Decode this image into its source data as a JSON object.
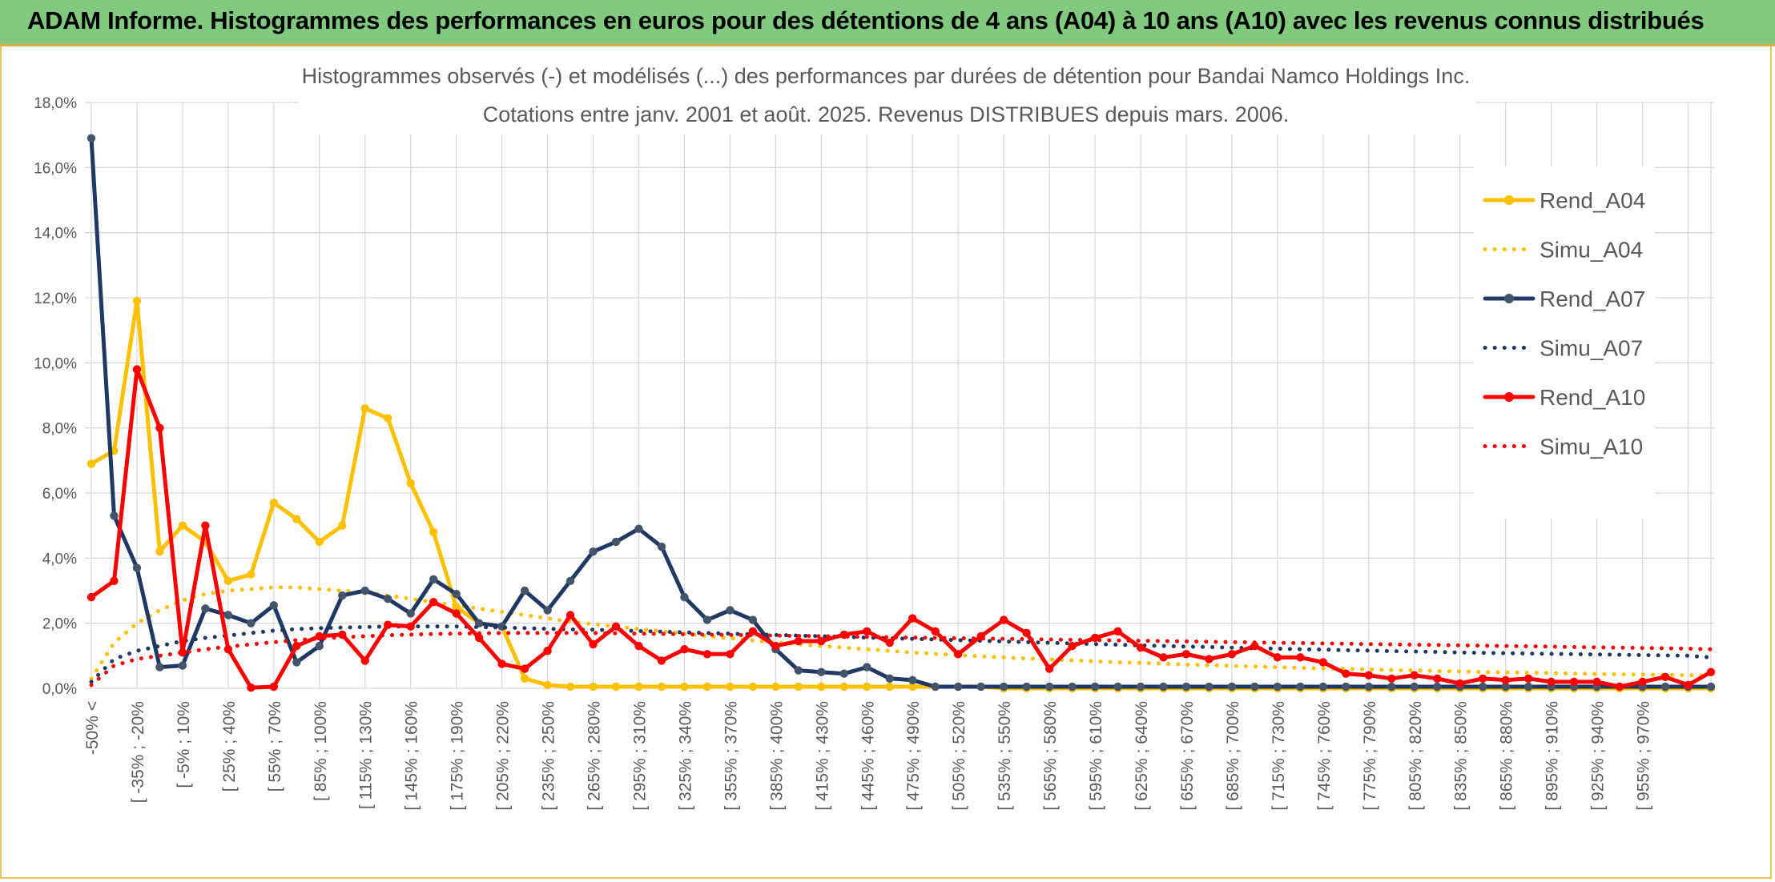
{
  "header": {
    "title": "ADAM Informe. Histogrammes des performances en euros pour des détentions de 4 ans (A04) à 10 ans (A10) avec les revenus connus distribués"
  },
  "chart_data": {
    "type": "line",
    "title": "Histogrammes observés (-) et modélisés (...) des performances par durées de détention pour Bandai Namco Holdings Inc.",
    "subtitle": "Cotations entre janv. 2001 et août. 2025. Revenus DISTRIBUES depuis mars. 2006.",
    "xlabel": "",
    "ylabel": "",
    "ylim": [
      0,
      18
    ],
    "y_unit": "%",
    "y_ticks": [
      "0,0%",
      "2,0%",
      "4,0%",
      "6,0%",
      "8,0%",
      "10,0%",
      "12,0%",
      "14,0%",
      "16,0%",
      "18,0%"
    ],
    "grid": true,
    "legend_position": "right",
    "num_points": 72,
    "x_tick_labels": [
      "-50% <",
      "[ -35% ; -20%",
      "[ -5% ; 10%",
      "[ 25% ; 40%",
      "[ 55% ; 70%",
      "[ 85% ; 100%",
      "[ 115% ; 130%",
      "[ 145% ; 160%",
      "[ 175% ; 190%",
      "[ 205% ; 220%",
      "[ 235% ; 250%",
      "[ 265% ; 280%",
      "[ 295% ; 310%",
      "[ 325% ; 340%",
      "[ 355% ; 370%",
      "[ 385% ; 400%",
      "[ 415% ; 430%",
      "[ 445% ; 460%",
      "[ 475% ; 490%",
      "[ 505% ; 520%",
      "[ 535% ; 550%",
      "[ 565% ; 580%",
      "[ 595% ; 610%",
      "[ 625% ; 640%",
      "[ 655% ; 670%",
      "[ 685% ; 700%",
      "[ 715% ; 730%",
      "[ 745% ; 760%",
      "[ 775% ; 790%",
      "[ 805% ; 820%",
      "[ 835% ; 850%",
      "[ 865% ; 880%",
      "[ 895% ; 910%",
      "[ 925% ; 940%",
      "[ 955% ; 970%"
    ],
    "x_tick_every": 2,
    "series": [
      {
        "name": "Rend_A04",
        "style": "solid",
        "color": "#ffc000",
        "markers": true,
        "values": [
          6.9,
          7.3,
          11.9,
          4.2,
          5.0,
          4.5,
          3.3,
          3.5,
          5.7,
          5.2,
          4.5,
          5.0,
          8.6,
          8.3,
          6.3,
          4.8,
          2.5,
          2.0,
          1.9,
          0.3,
          0.1,
          0.05,
          0.05,
          0.05,
          0.05,
          0.05,
          0.05,
          0.05,
          0.05,
          0.05,
          0.05,
          0.05,
          0.05,
          0.05,
          0.05,
          0.05,
          0.05,
          0.05,
          0.05,
          0.05,
          0.0,
          0.0,
          0.0,
          0.0,
          0.0,
          0.0,
          0.0,
          0.0,
          0.0,
          0.0,
          0.0,
          0.0,
          0.0,
          0.0,
          0.0,
          0.0,
          0.0,
          0.0,
          0.0,
          0.0,
          0.0,
          0.0,
          0.0,
          0.0,
          0.0,
          0.0,
          0.0,
          0.0,
          0.0,
          0.0,
          0.0,
          0.0
        ]
      },
      {
        "name": "Simu_A04",
        "style": "dotted",
        "color": "#ffc000",
        "markers": false,
        "values": [
          0.3,
          1.4,
          2.0,
          2.4,
          2.7,
          2.9,
          3.0,
          3.05,
          3.1,
          3.1,
          3.05,
          3.0,
          2.95,
          2.85,
          2.75,
          2.65,
          2.55,
          2.45,
          2.35,
          2.25,
          2.15,
          2.05,
          1.97,
          1.9,
          1.82,
          1.75,
          1.68,
          1.6,
          1.54,
          1.47,
          1.41,
          1.35,
          1.3,
          1.25,
          1.2,
          1.15,
          1.1,
          1.06,
          1.02,
          0.98,
          0.95,
          0.92,
          0.89,
          0.86,
          0.83,
          0.8,
          0.78,
          0.76,
          0.73,
          0.71,
          0.69,
          0.67,
          0.65,
          0.63,
          0.61,
          0.6,
          0.58,
          0.56,
          0.55,
          0.53,
          0.52,
          0.5,
          0.49,
          0.48,
          0.47,
          0.45,
          0.44,
          0.43,
          0.42,
          0.41,
          0.4,
          0.39
        ]
      },
      {
        "name": "Rend_A07",
        "style": "solid",
        "color": "#1f3864",
        "markers": true,
        "values": [
          16.9,
          5.3,
          3.7,
          0.65,
          0.7,
          2.45,
          2.25,
          2.0,
          2.55,
          0.8,
          1.3,
          2.85,
          3.0,
          2.75,
          2.3,
          3.35,
          2.9,
          2.0,
          1.9,
          3.0,
          2.4,
          3.3,
          4.2,
          4.5,
          4.9,
          4.35,
          2.8,
          2.1,
          2.4,
          2.1,
          1.2,
          0.55,
          0.5,
          0.45,
          0.65,
          0.3,
          0.25,
          0.05,
          0.05,
          0.05,
          0.05,
          0.05,
          0.05,
          0.05,
          0.05,
          0.05,
          0.05,
          0.05,
          0.05,
          0.05,
          0.05,
          0.05,
          0.05,
          0.05,
          0.05,
          0.05,
          0.05,
          0.05,
          0.05,
          0.05,
          0.05,
          0.05,
          0.05,
          0.05,
          0.05,
          0.05,
          0.05,
          0.05,
          0.05,
          0.05,
          0.05,
          0.05
        ]
      },
      {
        "name": "Simu_A07",
        "style": "dotted",
        "color": "#1f3864",
        "markers": false,
        "values": [
          0.2,
          0.9,
          1.15,
          1.3,
          1.45,
          1.55,
          1.62,
          1.7,
          1.77,
          1.82,
          1.85,
          1.87,
          1.88,
          1.9,
          1.9,
          1.9,
          1.9,
          1.88,
          1.87,
          1.85,
          1.83,
          1.81,
          1.8,
          1.78,
          1.76,
          1.74,
          1.72,
          1.7,
          1.68,
          1.66,
          1.64,
          1.62,
          1.6,
          1.58,
          1.56,
          1.54,
          1.52,
          1.5,
          1.48,
          1.46,
          1.44,
          1.42,
          1.4,
          1.38,
          1.36,
          1.34,
          1.32,
          1.3,
          1.28,
          1.27,
          1.25,
          1.23,
          1.22,
          1.2,
          1.19,
          1.17,
          1.16,
          1.14,
          1.13,
          1.12,
          1.1,
          1.09,
          1.08,
          1.07,
          1.06,
          1.05,
          1.04,
          1.03,
          1.02,
          1.01,
          1.0,
          0.95
        ]
      },
      {
        "name": "Rend_A10",
        "style": "solid",
        "color": "#ff0000",
        "markers": true,
        "values": [
          2.8,
          3.3,
          9.8,
          8.0,
          1.1,
          5.0,
          1.2,
          0.02,
          0.05,
          1.3,
          1.6,
          1.65,
          0.85,
          1.95,
          1.9,
          2.65,
          2.3,
          1.55,
          0.75,
          0.6,
          1.15,
          2.25,
          1.35,
          1.9,
          1.3,
          0.85,
          1.2,
          1.05,
          1.05,
          1.75,
          1.3,
          1.45,
          1.45,
          1.65,
          1.75,
          1.4,
          2.15,
          1.75,
          1.05,
          1.6,
          2.1,
          1.7,
          0.6,
          1.3,
          1.55,
          1.75,
          1.25,
          0.95,
          1.05,
          0.9,
          1.05,
          1.3,
          0.95,
          0.95,
          0.8,
          0.45,
          0.4,
          0.3,
          0.4,
          0.3,
          0.15,
          0.3,
          0.25,
          0.3,
          0.2,
          0.2,
          0.2,
          0.05,
          0.2,
          0.35,
          0.1,
          0.5
        ]
      },
      {
        "name": "Simu_A10",
        "style": "dotted",
        "color": "#ff0000",
        "markers": false,
        "values": [
          0.1,
          0.7,
          0.9,
          1.0,
          1.1,
          1.2,
          1.28,
          1.35,
          1.42,
          1.48,
          1.53,
          1.57,
          1.6,
          1.63,
          1.65,
          1.67,
          1.68,
          1.69,
          1.7,
          1.7,
          1.7,
          1.7,
          1.7,
          1.69,
          1.68,
          1.67,
          1.66,
          1.65,
          1.64,
          1.63,
          1.62,
          1.61,
          1.6,
          1.59,
          1.58,
          1.57,
          1.56,
          1.55,
          1.54,
          1.53,
          1.52,
          1.51,
          1.5,
          1.49,
          1.48,
          1.47,
          1.46,
          1.45,
          1.44,
          1.43,
          1.42,
          1.41,
          1.4,
          1.39,
          1.38,
          1.37,
          1.36,
          1.35,
          1.34,
          1.33,
          1.32,
          1.31,
          1.3,
          1.29,
          1.28,
          1.27,
          1.26,
          1.25,
          1.24,
          1.23,
          1.22,
          1.2
        ]
      }
    ]
  }
}
